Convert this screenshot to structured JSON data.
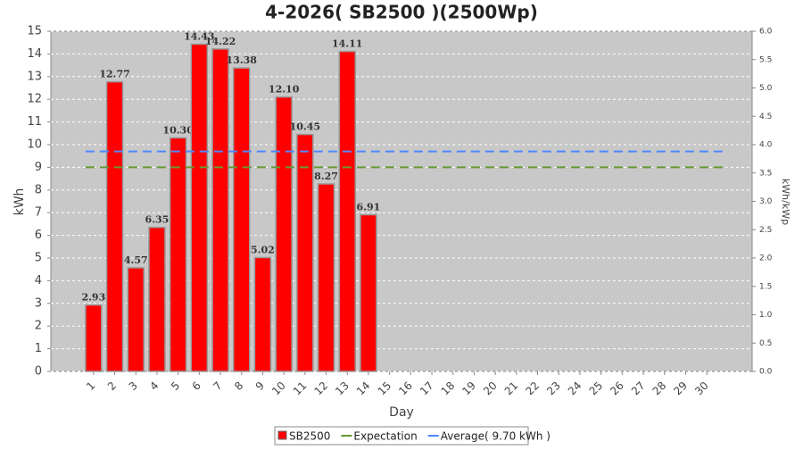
{
  "chart_data": {
    "type": "bar",
    "title": "4-2026( SB2500 )(2500Wp)",
    "x_label": "Day",
    "y_label": "kWh",
    "y2_label": "kWh/kWp",
    "categories": [
      "1",
      "2",
      "3",
      "4",
      "5",
      "6",
      "7",
      "8",
      "9",
      "10",
      "11",
      "12",
      "13",
      "14",
      "15",
      "16",
      "17",
      "18",
      "19",
      "20",
      "21",
      "22",
      "23",
      "24",
      "25",
      "26",
      "27",
      "28",
      "29",
      "30"
    ],
    "series": [
      {
        "name": "SB2500",
        "color": "#ff0000",
        "values": [
          2.93,
          12.77,
          4.57,
          6.35,
          10.3,
          14.43,
          14.22,
          13.38,
          5.02,
          12.1,
          10.45,
          8.27,
          14.11,
          6.91,
          0,
          0,
          0,
          0,
          0,
          0,
          0,
          0,
          0,
          0,
          0,
          0,
          0,
          0,
          0,
          0
        ],
        "value_labels": [
          "2.93",
          "12.77",
          "4.57",
          "6.35",
          "10.30",
          "14.43",
          "14.22",
          "13.38",
          "5.02",
          "12.10",
          "10.45",
          "8.27",
          "14.11",
          "6.91",
          null,
          null,
          null,
          null,
          null,
          null,
          null,
          null,
          null,
          null,
          null,
          null,
          null,
          null,
          null,
          null
        ]
      },
      {
        "name": "Expectation",
        "color": "#669933",
        "value": 9.0
      },
      {
        "name": "Average( 9.70 kWh )",
        "color": "#4d88ff",
        "value": 9.7
      }
    ],
    "ylim": [
      0,
      15
    ],
    "yticks": [
      0,
      1,
      2,
      3,
      4,
      5,
      6,
      7,
      8,
      9,
      10,
      11,
      12,
      13,
      14,
      15
    ],
    "y2lim": [
      0,
      6
    ],
    "y2ticks": [
      {
        "value": 0,
        "label": "0.0"
      },
      {
        "value": 0.5,
        "label": "0.5"
      },
      {
        "value": 1,
        "label": "1.0"
      },
      {
        "value": 1.5,
        "label": "1.5"
      },
      {
        "value": 2,
        "label": "2.0"
      },
      {
        "value": 2.5,
        "label": "2.5"
      },
      {
        "value": 3,
        "label": "3.0"
      },
      {
        "value": 3.5,
        "label": "3.5"
      },
      {
        "value": 4,
        "label": "4.0"
      },
      {
        "value": 4.5,
        "label": "4.5"
      },
      {
        "value": 5,
        "label": "5.0"
      },
      {
        "value": 5.5,
        "label": "5.5"
      },
      {
        "value": 6,
        "label": "6.0"
      }
    ],
    "grid": true
  }
}
